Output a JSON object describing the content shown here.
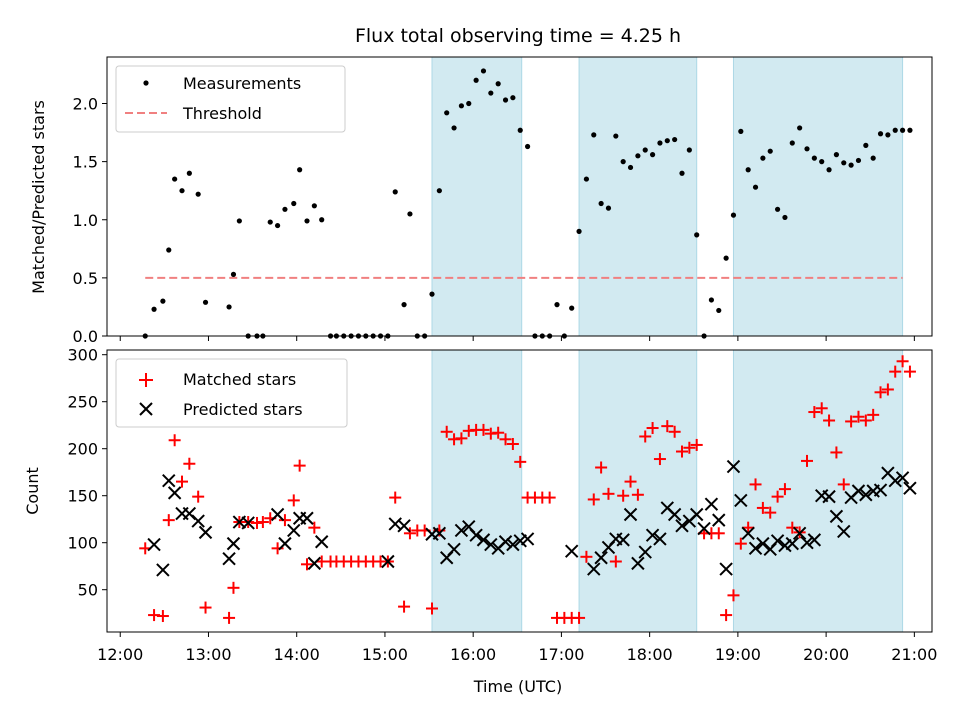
{
  "chart_data": {
    "title": "Flux total observing time = 4.25 h",
    "xlabel": "Time (UTC)",
    "x_ticks": [
      "12:00",
      "13:00",
      "14:00",
      "15:00",
      "16:00",
      "17:00",
      "18:00",
      "19:00",
      "20:00",
      "21:00"
    ],
    "xlim_hours": [
      11.85,
      21.2
    ],
    "shaded_intervals": [
      {
        "start": "15:32",
        "end": "16:33"
      },
      {
        "start": "17:12",
        "end": "18:32"
      },
      {
        "start": "18:57",
        "end": "20:52"
      }
    ],
    "colors": {
      "shade": "#add8e6",
      "measurement": "#000000",
      "threshold": "#f08080",
      "matched": "#ff0000",
      "predicted": "#000000"
    },
    "panels": [
      {
        "type": "scatter",
        "ylabel": "Matched/Predicted stars",
        "ylim": [
          0,
          2.4
        ],
        "y_ticks": [
          "0.0",
          "0.5",
          "1.0",
          "1.5",
          "2.0"
        ],
        "legend_position": "upper-left",
        "threshold": {
          "name": "Threshold",
          "value": 0.5,
          "x_start": "12:17",
          "x_end": "20:52"
        },
        "series": [
          {
            "name": "Measurements",
            "marker": "dot",
            "x": [
              "12:17",
              "12:23",
              "12:29",
              "12:33",
              "12:37",
              "12:42",
              "12:47",
              "12:53",
              "12:58",
              "13:14",
              "13:17",
              "13:21",
              "13:27",
              "13:33",
              "13:37",
              "13:42",
              "13:47",
              "13:52",
              "13:58",
              "14:02",
              "14:07",
              "14:12",
              "14:17",
              "14:23",
              "14:27",
              "14:32",
              "14:37",
              "14:42",
              "14:47",
              "14:52",
              "14:57",
              "15:02",
              "15:07",
              "15:13",
              "15:17",
              "15:22",
              "15:27",
              "15:32",
              "15:37",
              "15:42",
              "15:47",
              "15:52",
              "15:57",
              "16:02",
              "16:07",
              "16:12",
              "16:17",
              "16:22",
              "16:27",
              "16:32",
              "16:37",
              "16:42",
              "16:47",
              "16:52",
              "16:57",
              "17:02",
              "17:07",
              "17:12",
              "17:17",
              "17:22",
              "17:27",
              "17:32",
              "17:37",
              "17:42",
              "17:47",
              "17:52",
              "17:57",
              "18:02",
              "18:07",
              "18:12",
              "18:17",
              "18:22",
              "18:27",
              "18:32",
              "18:37",
              "18:42",
              "18:47",
              "18:52",
              "18:57",
              "19:02",
              "19:07",
              "19:12",
              "19:17",
              "19:22",
              "19:27",
              "19:32",
              "19:37",
              "19:42",
              "19:47",
              "19:52",
              "19:57",
              "20:02",
              "20:07",
              "20:12",
              "20:17",
              "20:22",
              "20:27",
              "20:32",
              "20:37",
              "20:42",
              "20:47",
              "20:52",
              "20:57"
            ],
            "y": [
              0.0,
              0.23,
              0.3,
              0.74,
              1.35,
              1.25,
              1.4,
              1.22,
              0.29,
              0.25,
              0.53,
              0.99,
              0.0,
              0.0,
              0.0,
              0.98,
              0.95,
              1.09,
              1.14,
              1.43,
              0.99,
              1.12,
              1.0,
              0.0,
              0.0,
              0.0,
              0.0,
              0.0,
              0.0,
              0.0,
              0.0,
              0.0,
              1.24,
              0.27,
              1.05,
              0.0,
              0.0,
              0.36,
              1.25,
              1.92,
              1.79,
              1.98,
              2.0,
              2.2,
              2.28,
              2.09,
              2.17,
              2.03,
              2.05,
              1.77,
              1.63,
              0.0,
              0.0,
              0.0,
              0.27,
              0.0,
              0.24,
              0.9,
              1.35,
              1.73,
              1.14,
              1.1,
              1.72,
              1.5,
              1.45,
              1.55,
              1.6,
              1.56,
              1.66,
              1.68,
              1.69,
              1.4,
              1.6,
              0.87,
              0.0,
              0.31,
              0.22,
              0.67,
              1.04,
              1.76,
              1.43,
              1.28,
              1.53,
              1.59,
              1.09,
              1.02,
              1.66,
              1.79,
              1.61,
              1.53,
              1.5,
              1.43,
              1.56,
              1.49,
              1.47,
              1.51,
              1.64,
              1.53,
              1.74,
              1.73,
              1.77,
              1.77,
              1.77
            ]
          }
        ]
      },
      {
        "type": "scatter",
        "ylabel": "Count",
        "ylim": [
          5,
          305
        ],
        "y_ticks": [
          "50",
          "100",
          "150",
          "200",
          "250",
          "300"
        ],
        "legend_position": "upper-left",
        "series": [
          {
            "name": "Matched stars",
            "marker": "plus",
            "x": [
              "12:17",
              "12:23",
              "12:29",
              "12:33",
              "12:37",
              "12:42",
              "12:47",
              "12:53",
              "12:58",
              "13:14",
              "13:17",
              "13:21",
              "13:27",
              "13:33",
              "13:37",
              "13:42",
              "13:47",
              "13:52",
              "13:58",
              "14:02",
              "14:07",
              "14:12",
              "14:17",
              "14:23",
              "14:27",
              "14:32",
              "14:37",
              "14:42",
              "14:47",
              "14:52",
              "14:57",
              "15:02",
              "15:07",
              "15:13",
              "15:17",
              "15:22",
              "15:27",
              "15:32",
              "15:37",
              "15:42",
              "15:47",
              "15:52",
              "15:57",
              "16:02",
              "16:07",
              "16:12",
              "16:17",
              "16:22",
              "16:27",
              "16:32",
              "16:37",
              "16:42",
              "16:47",
              "16:52",
              "16:57",
              "17:02",
              "17:07",
              "17:12",
              "17:17",
              "17:22",
              "17:27",
              "17:32",
              "17:37",
              "17:42",
              "17:47",
              "17:52",
              "17:57",
              "18:02",
              "18:07",
              "18:12",
              "18:17",
              "18:22",
              "18:27",
              "18:32",
              "18:37",
              "18:42",
              "18:47",
              "18:52",
              "18:57",
              "19:02",
              "19:07",
              "19:12",
              "19:17",
              "19:22",
              "19:27",
              "19:32",
              "19:37",
              "19:42",
              "19:47",
              "19:52",
              "19:57",
              "20:02",
              "20:07",
              "20:12",
              "20:17",
              "20:22",
              "20:27",
              "20:32",
              "20:37",
              "20:42",
              "20:47",
              "20:52",
              "20:57"
            ],
            "y": [
              94,
              23,
              22,
              124,
              209,
              165,
              184,
              149,
              31,
              20,
              52,
              122,
              122,
              121,
              122,
              126,
              94,
              124,
              145,
              182,
              77,
              116,
              80,
              80,
              80,
              80,
              80,
              80,
              80,
              80,
              80,
              80,
              148,
              32,
              110,
              113,
              113,
              30,
              113,
              218,
              210,
              211,
              219,
              220,
              220,
              216,
              217,
              210,
              205,
              186,
              148,
              148,
              148,
              148,
              20,
              20,
              20,
              20,
              85,
              146,
              180,
              152,
              80,
              150,
              165,
              151,
              213,
              222,
              189,
              224,
              218,
              197,
              201,
              204,
              110,
              110,
              110,
              23,
              44,
              99,
              116,
              162,
              137,
              132,
              149,
              157,
              116,
              111,
              187,
              239,
              243,
              230,
              196,
              162,
              229,
              234,
              230,
              236,
              260,
              263,
              282,
              293,
              282
            ]
          },
          {
            "name": "Predicted stars",
            "marker": "x",
            "x": [
              "12:23",
              "12:29",
              "12:33",
              "12:37",
              "12:42",
              "12:47",
              "12:53",
              "12:58",
              "13:14",
              "13:17",
              "13:21",
              "13:27",
              "13:47",
              "13:52",
              "13:58",
              "14:02",
              "14:07",
              "14:12",
              "14:17",
              "15:02",
              "15:07",
              "15:13",
              "15:32",
              "15:37",
              "15:42",
              "15:47",
              "15:52",
              "15:57",
              "16:02",
              "16:07",
              "16:12",
              "16:17",
              "16:22",
              "16:27",
              "16:32",
              "16:37",
              "17:07",
              "17:22",
              "17:27",
              "17:32",
              "17:37",
              "17:42",
              "17:47",
              "17:52",
              "17:57",
              "18:02",
              "18:07",
              "18:12",
              "18:17",
              "18:22",
              "18:27",
              "18:32",
              "18:37",
              "18:42",
              "18:47",
              "18:52",
              "18:57",
              "19:02",
              "19:07",
              "19:12",
              "19:17",
              "19:22",
              "19:27",
              "19:32",
              "19:37",
              "19:42",
              "19:47",
              "19:52",
              "19:57",
              "20:02",
              "20:07",
              "20:12",
              "20:17",
              "20:22",
              "20:27",
              "20:32",
              "20:37",
              "20:42",
              "20:47",
              "20:52",
              "20:57"
            ],
            "y": [
              98,
              71,
              166,
              153,
              131,
              131,
              123,
              111,
              83,
              99,
              122,
              121,
              130,
              99,
              113,
              126,
              126,
              78,
              101,
              80,
              120,
              118,
              109,
              110,
              84,
              93,
              113,
              117,
              108,
              103,
              98,
              94,
              101,
              98,
              102,
              104,
              91,
              72,
              84,
              95,
              104,
              103,
              130,
              78,
              90,
              108,
              104,
              137,
              130,
              118,
              123,
              130,
              115,
              141,
              124,
              72,
              181,
              145,
              110,
              94,
              99,
              93,
              102,
              97,
              99,
              110,
              100,
              103,
              150,
              149,
              128,
              112,
              148,
              155,
              151,
              155,
              156,
              174,
              166,
              169,
              158
            ]
          }
        ]
      }
    ]
  }
}
